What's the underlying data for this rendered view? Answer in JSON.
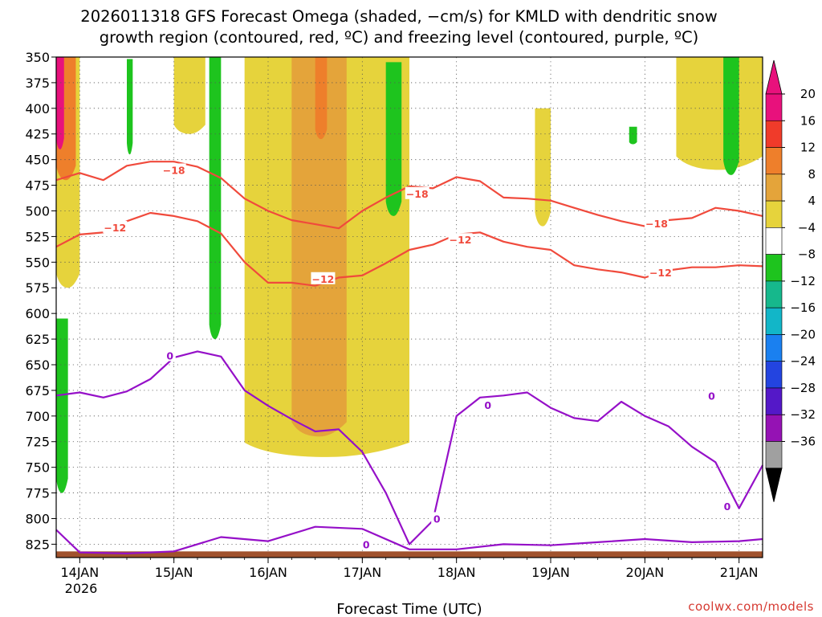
{
  "title": {
    "line1": "2026011318 GFS Forecast Omega (shaded, −cm/s) for KMLD with dendritic snow",
    "line2": "growth region (contoured, red, ºC) and freezing level (contoured, purple, ºC)"
  },
  "credit": "coolwx.com/models",
  "chart_data": {
    "type": "contour",
    "title": "2026011318 GFS Forecast Omega (shaded, −cm/s) for KMLD with dendritic snow growth region (contoured, red, ºC) and freezing level (contoured, purple, ºC)",
    "xlabel": "Forecast Time (UTC)",
    "ylabel": "",
    "x_axis": {
      "type": "time",
      "range": [
        "2026-01-13T18:00",
        "2026-01-21T06:00"
      ],
      "ticks": [
        "14JAN",
        "15JAN",
        "16JAN",
        "17JAN",
        "18JAN",
        "19JAN",
        "20JAN",
        "21JAN"
      ],
      "year_label": "2026",
      "gridlines": true
    },
    "y_axis": {
      "units": "hPa",
      "range": [
        350,
        838
      ],
      "inverted": true,
      "ticks": [
        350,
        375,
        400,
        425,
        450,
        475,
        500,
        525,
        550,
        575,
        600,
        625,
        650,
        675,
        700,
        725,
        750,
        775,
        800,
        825
      ],
      "gridlines": true
    },
    "colorbar": {
      "labels": [
        "20",
        "16",
        "12",
        "8",
        "4",
        "−4",
        "−8",
        "−12",
        "−16",
        "−20",
        "−24",
        "−28",
        "−32",
        "−36"
      ],
      "colors": [
        "#e8117c",
        "#f03b2a",
        "#ee7f2b",
        "#e4a43a",
        "#e6d33c",
        "#ffffff",
        "#1ec41e",
        "#16b88c",
        "#12b6c8",
        "#1a80f0",
        "#2344e0",
        "#5418c8",
        "#9512b4",
        "#a0a0a0"
      ],
      "top_extension_color": "#e8117c",
      "bottom_extension_color": "#000000"
    },
    "omega_regions": [
      {
        "level": "4",
        "color": "#e6d33c",
        "x": [
          "2026-01-13T18:00",
          "2026-01-14T00:00"
        ],
        "p_range": [
          350,
          575
        ]
      },
      {
        "level": "12",
        "color": "#ee7f2b",
        "x": [
          "2026-01-13T18:00",
          "2026-01-13T23:00"
        ],
        "p_range": [
          350,
          470
        ]
      },
      {
        "level": "20",
        "color": "#e8117c",
        "x": [
          "2026-01-13T18:00",
          "2026-01-13T20:00"
        ],
        "p_range": [
          350,
          440
        ]
      },
      {
        "level": "4",
        "color": "#e6d33c",
        "x": [
          "2026-01-15T00:00",
          "2026-01-15T08:00"
        ],
        "p_range": [
          350,
          425
        ]
      },
      {
        "level": "4",
        "color": "#e6d33c",
        "x": [
          "2026-01-15T18:00",
          "2026-01-17T12:00"
        ],
        "p_range": [
          350,
          740
        ]
      },
      {
        "level": "8",
        "color": "#e4a43a",
        "x": [
          "2026-01-16T06:00",
          "2026-01-16T20:00"
        ],
        "p_range": [
          350,
          720
        ]
      },
      {
        "level": "12",
        "color": "#ee7f2b",
        "x": [
          "2026-01-16T12:00",
          "2026-01-16T15:00"
        ],
        "p_range": [
          350,
          430
        ]
      },
      {
        "level": "4",
        "color": "#e6d33c",
        "x": [
          "2026-01-18T20:00",
          "2026-01-19T00:00"
        ],
        "p_range": [
          400,
          515
        ]
      },
      {
        "level": "4",
        "color": "#e6d33c",
        "x": [
          "2026-01-20T08:00",
          "2026-01-21T06:00"
        ],
        "p_range": [
          350,
          460
        ]
      },
      {
        "level": "-4",
        "color": "#1ec41e",
        "x": [
          "2026-01-13T18:00",
          "2026-01-13T21:00"
        ],
        "p_range": [
          605,
          775
        ]
      },
      {
        "level": "-4",
        "color": "#1ec41e",
        "x": [
          "2026-01-14T12:00",
          "2026-01-14T13:30"
        ],
        "p_range": [
          352,
          445
        ]
      },
      {
        "level": "-4",
        "color": "#1ec41e",
        "x": [
          "2026-01-15T09:00",
          "2026-01-15T12:00"
        ],
        "p_range": [
          350,
          625
        ]
      },
      {
        "level": "-4",
        "color": "#1ec41e",
        "x": [
          "2026-01-17T06:00",
          "2026-01-17T10:00"
        ],
        "p_range": [
          355,
          505
        ]
      },
      {
        "level": "-4",
        "color": "#1ec41e",
        "x": [
          "2026-01-19T20:00",
          "2026-01-19T22:00"
        ],
        "p_range": [
          418,
          435
        ]
      },
      {
        "level": "-4",
        "color": "#1ec41e",
        "x": [
          "2026-01-20T20:00",
          "2026-01-21T00:00"
        ],
        "p_range": [
          350,
          465
        ]
      }
    ],
    "contours": [
      {
        "name": "dendritic_-18",
        "color": "#f04a3c",
        "label": "−18",
        "points": [
          [
            "2026-01-13T18:00",
            470
          ],
          [
            "2026-01-14T00:00",
            463
          ],
          [
            "2026-01-14T06:00",
            470
          ],
          [
            "2026-01-14T12:00",
            456
          ],
          [
            "2026-01-14T18:00",
            452
          ],
          [
            "2026-01-15T00:00",
            452
          ],
          [
            "2026-01-15T06:00",
            457
          ],
          [
            "2026-01-15T12:00",
            468
          ],
          [
            "2026-01-15T18:00",
            488
          ],
          [
            "2026-01-16T00:00",
            500
          ],
          [
            "2026-01-16T06:00",
            509
          ],
          [
            "2026-01-16T12:00",
            513
          ],
          [
            "2026-01-16T18:00",
            517
          ],
          [
            "2026-01-17T00:00",
            500
          ],
          [
            "2026-01-17T06:00",
            487
          ],
          [
            "2026-01-17T12:00",
            476
          ],
          [
            "2026-01-17T18:00",
            478
          ],
          [
            "2026-01-18T00:00",
            467
          ],
          [
            "2026-01-18T06:00",
            471
          ],
          [
            "2026-01-18T12:00",
            487
          ],
          [
            "2026-01-18T18:00",
            488
          ],
          [
            "2026-01-19T00:00",
            490
          ],
          [
            "2026-01-19T06:00",
            497
          ],
          [
            "2026-01-19T12:00",
            504
          ],
          [
            "2026-01-19T18:00",
            510
          ],
          [
            "2026-01-20T00:00",
            515
          ],
          [
            "2026-01-20T06:00",
            509
          ],
          [
            "2026-01-20T12:00",
            507
          ],
          [
            "2026-01-20T18:00",
            497
          ],
          [
            "2026-01-21T00:00",
            500
          ],
          [
            "2026-01-21T06:00",
            505
          ]
        ]
      },
      {
        "name": "dendritic_-12",
        "color": "#f04a3c",
        "label": "−12",
        "points": [
          [
            "2026-01-13T18:00",
            535
          ],
          [
            "2026-01-14T00:00",
            523
          ],
          [
            "2026-01-14T06:00",
            521
          ],
          [
            "2026-01-14T12:00",
            510
          ],
          [
            "2026-01-14T18:00",
            502
          ],
          [
            "2026-01-15T00:00",
            505
          ],
          [
            "2026-01-15T06:00",
            510
          ],
          [
            "2026-01-15T12:00",
            522
          ],
          [
            "2026-01-15T18:00",
            550
          ],
          [
            "2026-01-16T00:00",
            570
          ],
          [
            "2026-01-16T06:00",
            570
          ],
          [
            "2026-01-16T12:00",
            573
          ],
          [
            "2026-01-16T18:00",
            565
          ],
          [
            "2026-01-17T00:00",
            563
          ],
          [
            "2026-01-17T06:00",
            551
          ],
          [
            "2026-01-17T12:00",
            538
          ],
          [
            "2026-01-17T18:00",
            533
          ],
          [
            "2026-01-18T00:00",
            523
          ],
          [
            "2026-01-18T06:00",
            521
          ],
          [
            "2026-01-18T12:00",
            530
          ],
          [
            "2026-01-18T18:00",
            535
          ],
          [
            "2026-01-19T00:00",
            538
          ],
          [
            "2026-01-19T06:00",
            553
          ],
          [
            "2026-01-19T12:00",
            557
          ],
          [
            "2026-01-19T18:00",
            560
          ],
          [
            "2026-01-20T00:00",
            565
          ],
          [
            "2026-01-20T06:00",
            558
          ],
          [
            "2026-01-20T12:00",
            555
          ],
          [
            "2026-01-20T18:00",
            555
          ],
          [
            "2026-01-21T00:00",
            553
          ],
          [
            "2026-01-21T06:00",
            554
          ]
        ]
      },
      {
        "name": "freezing_0",
        "color": "#9510c8",
        "label": "0",
        "points": [
          [
            "2026-01-13T18:00",
            680
          ],
          [
            "2026-01-14T00:00",
            677
          ],
          [
            "2026-01-14T06:00",
            682
          ],
          [
            "2026-01-14T12:00",
            676
          ],
          [
            "2026-01-14T18:00",
            664
          ],
          [
            "2026-01-15T00:00",
            643
          ],
          [
            "2026-01-15T06:00",
            637
          ],
          [
            "2026-01-15T12:00",
            642
          ],
          [
            "2026-01-15T18:00",
            675
          ],
          [
            "2026-01-16T00:00",
            690
          ],
          [
            "2026-01-16T06:00",
            703
          ],
          [
            "2026-01-16T12:00",
            715
          ],
          [
            "2026-01-16T18:00",
            713
          ],
          [
            "2026-01-17T00:00",
            735
          ],
          [
            "2026-01-17T06:00",
            775
          ],
          [
            "2026-01-17T12:00",
            825
          ],
          [
            "2026-01-17T18:00",
            802
          ],
          [
            "2026-01-18T00:00",
            700
          ],
          [
            "2026-01-18T06:00",
            682
          ],
          [
            "2026-01-18T12:00",
            680
          ],
          [
            "2026-01-18T18:00",
            677
          ],
          [
            "2026-01-19T00:00",
            692
          ],
          [
            "2026-01-19T06:00",
            702
          ],
          [
            "2026-01-19T12:00",
            705
          ],
          [
            "2026-01-19T18:00",
            686
          ],
          [
            "2026-01-20T00:00",
            700
          ],
          [
            "2026-01-20T06:00",
            710
          ],
          [
            "2026-01-20T12:00",
            730
          ],
          [
            "2026-01-20T18:00",
            745
          ],
          [
            "2026-01-21T00:00",
            790
          ],
          [
            "2026-01-21T06:00",
            748
          ]
        ]
      },
      {
        "name": "freezing_0_lower",
        "color": "#9510c8",
        "label": "0",
        "points": [
          [
            "2026-01-13T18:00",
            811
          ],
          [
            "2026-01-14T00:00",
            833
          ],
          [
            "2026-01-14T12:00",
            834
          ],
          [
            "2026-01-15T00:00",
            832
          ],
          [
            "2026-01-15T12:00",
            818
          ],
          [
            "2026-01-16T00:00",
            822
          ],
          [
            "2026-01-16T12:00",
            808
          ],
          [
            "2026-01-17T00:00",
            810
          ],
          [
            "2026-01-17T12:00",
            830
          ],
          [
            "2026-01-18T00:00",
            830
          ],
          [
            "2026-01-18T12:00",
            825
          ],
          [
            "2026-01-19T00:00",
            826
          ],
          [
            "2026-01-19T12:00",
            823
          ],
          [
            "2026-01-20T00:00",
            820
          ],
          [
            "2026-01-20T12:00",
            823
          ],
          [
            "2026-01-21T00:00",
            822
          ],
          [
            "2026-01-21T06:00",
            820
          ]
        ]
      }
    ],
    "contour_label_positions": [
      {
        "text": "−18",
        "color": "#f04a3c",
        "x": "2026-01-15T00:00",
        "p": 460
      },
      {
        "text": "−18",
        "color": "#f04a3c",
        "x": "2026-01-17T14:00",
        "p": 483
      },
      {
        "text": "−18",
        "color": "#f04a3c",
        "x": "2026-01-20T03:00",
        "p": 512
      },
      {
        "text": "−12",
        "color": "#f04a3c",
        "x": "2026-01-14T09:00",
        "p": 516
      },
      {
        "text": "−12",
        "color": "#f04a3c",
        "x": "2026-01-16T14:00",
        "p": 566
      },
      {
        "text": "−12",
        "color": "#f04a3c",
        "x": "2026-01-18T01:00",
        "p": 528
      },
      {
        "text": "−12",
        "color": "#f04a3c",
        "x": "2026-01-20T04:00",
        "p": 560
      },
      {
        "text": "0",
        "color": "#9510c8",
        "x": "2026-01-14T23:00",
        "p": 641
      },
      {
        "text": "0",
        "color": "#9510c8",
        "x": "2026-01-18T08:00",
        "p": 689
      },
      {
        "text": "0",
        "color": "#9510c8",
        "x": "2026-01-20T17:00",
        "p": 680
      },
      {
        "text": "0",
        "color": "#9510c8",
        "x": "2026-01-20T21:00",
        "p": 788
      },
      {
        "text": "0",
        "color": "#9510c8",
        "x": "2026-01-17T19:00",
        "p": 800
      },
      {
        "text": "0",
        "color": "#9510c8",
        "x": "2026-01-17T01:00",
        "p": 825
      }
    ],
    "terrain": {
      "color": "#a0522d",
      "surface_p": 832
    },
    "grid": true,
    "legend": "right"
  }
}
